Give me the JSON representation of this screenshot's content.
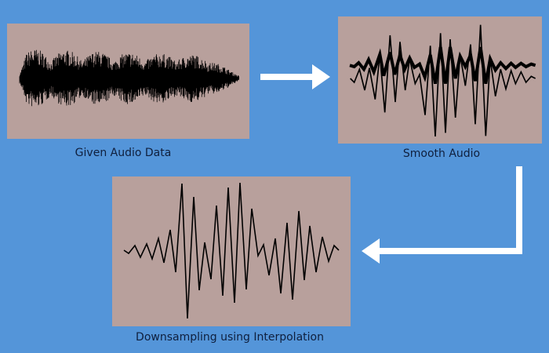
{
  "colors": {
    "background": "#5495d9",
    "panel": "#b8a09c",
    "waveform": "#000000",
    "arrow": "#ffffff"
  },
  "panels": [
    {
      "label": "Given Audio Data"
    },
    {
      "label": "Smooth Audio"
    },
    {
      "label": "Downsampling using Interpolation"
    }
  ],
  "arrows": [
    {
      "from": "Given Audio Data",
      "to": "Smooth Audio",
      "icon": "arrow-right-icon"
    },
    {
      "from": "Smooth Audio",
      "to": "Downsampling using Interpolation",
      "icon": "elbow-arrow-icon"
    }
  ]
}
